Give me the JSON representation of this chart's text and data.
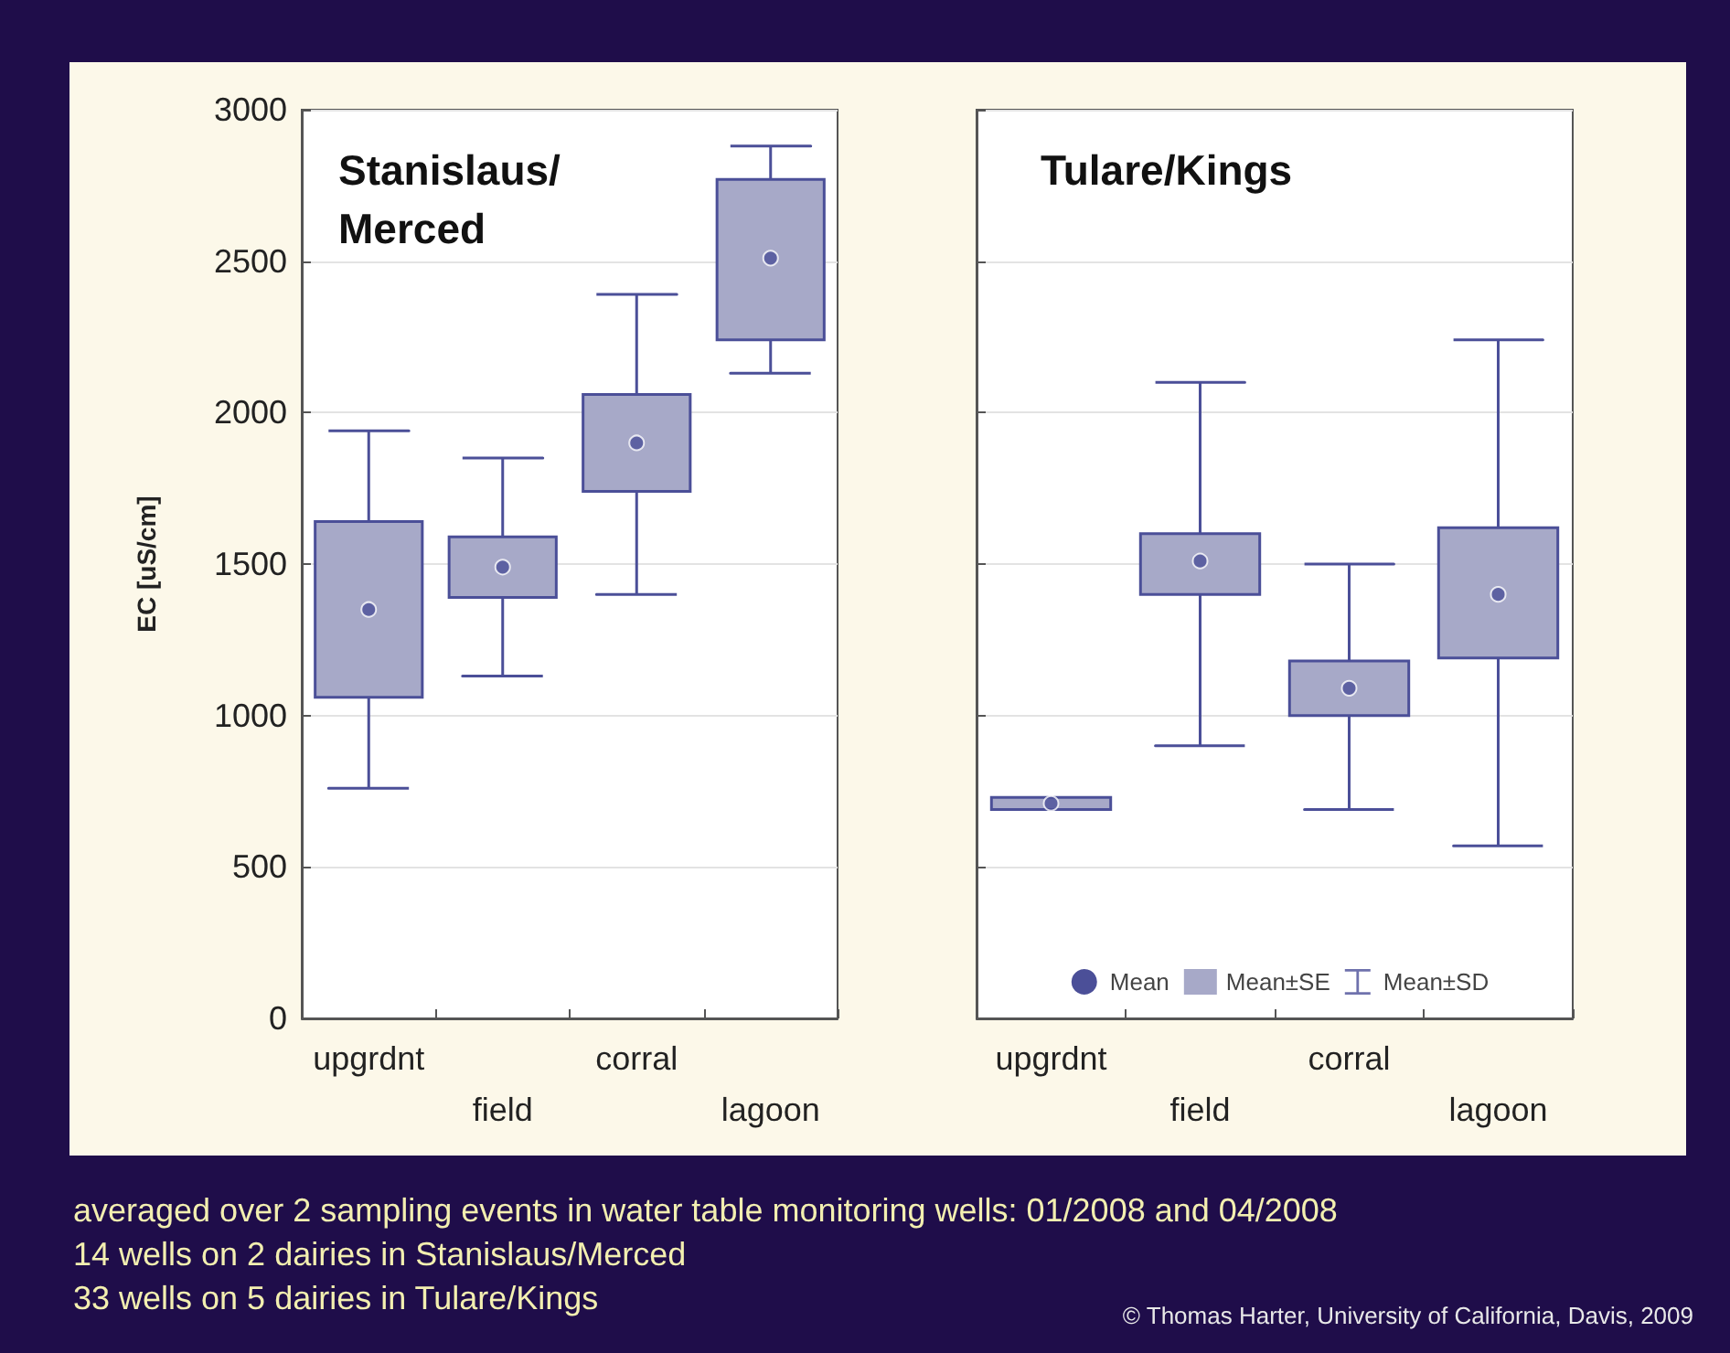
{
  "chart_data": [
    {
      "type": "bar",
      "title": "Stanislaus/\nMerced",
      "ylabel": "EC [uS/cm]",
      "categories": [
        "upgrdnt",
        "field",
        "corral",
        "lagoon"
      ],
      "ylim": [
        0,
        3000
      ],
      "yticks": [
        0,
        500,
        1000,
        1500,
        2000,
        2500,
        3000
      ],
      "grid": "y",
      "legend": false,
      "series": [
        {
          "color": "#a7a9c8",
          "base": [
            1060,
            1390,
            1740,
            2240
          ],
          "values": [
            580,
            200,
            320,
            530
          ]
        },
        {
          "type": "scatter",
          "marker": "circle",
          "color": "#4b4f98",
          "values": [
            1350,
            1490,
            1900,
            2510
          ],
          "errors": [
            [
              760,
              1940
            ],
            [
              1130,
              1850
            ],
            [
              1400,
              2390
            ],
            [
              2130,
              2880
            ]
          ]
        }
      ],
      "annotations": [
        "averaged over 2 sampling events in water table monitoring wells: 01/2008 and 04/2008",
        "14 wells on 2 dairies in Stanislaus/Merced",
        "33 wells on 5 dairies in Tulare/Kings",
        "© Thomas Harter, University of California, Davis, 2009"
      ]
    },
    {
      "type": "bar",
      "title": "Tulare/Kings",
      "categories": [
        "upgrdnt",
        "field",
        "corral",
        "lagoon"
      ],
      "ylim": [
        0,
        3000
      ],
      "yticks": [
        0,
        500,
        1000,
        1500,
        2000,
        2500,
        3000
      ],
      "tick_labels": "x",
      "grid": "y",
      "legend": "bottom",
      "series": [
        {
          "name": "Mean",
          "type": "scatter",
          "marker": "circle",
          "color": "#4b4f98",
          "values": [
            710,
            1510,
            1090,
            1400
          ],
          "errors": [
            null,
            [
              900,
              2100
            ],
            [
              690,
              1500
            ],
            [
              570,
              2240
            ]
          ]
        },
        {
          "name": "Mean±SE",
          "color": "#a7a9c8",
          "base": [
            690,
            1400,
            1000,
            1190
          ],
          "values": [
            40,
            200,
            180,
            430
          ]
        }
      ],
      "annotations": [
        "Mean±SD"
      ]
    }
  ]
}
